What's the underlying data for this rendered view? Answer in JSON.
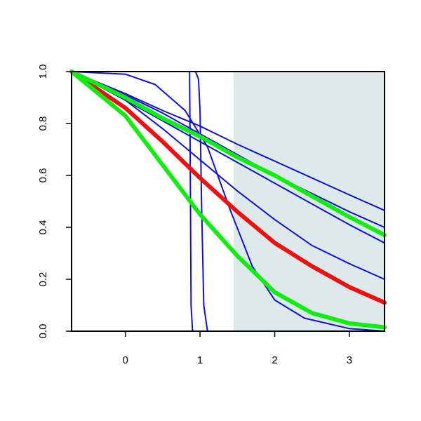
{
  "chart_data": {
    "type": "line",
    "title": "",
    "xlabel": "",
    "ylabel": "",
    "xlim": [
      -0.72,
      3.47
    ],
    "ylim": [
      0,
      1
    ],
    "x_ticks": [
      0,
      1,
      2,
      3
    ],
    "x_tick_labels": [
      "0",
      "1",
      "2",
      "3"
    ],
    "y_ticks": [
      0,
      0.2,
      0.4,
      0.6,
      0.8,
      1.0
    ],
    "y_tick_labels": [
      "0.0",
      "0.2",
      "0.4",
      "0.6",
      "0.8",
      "1.0"
    ],
    "shaded_region": {
      "x_from": 1.45,
      "x_to": 3.47,
      "color": "#dde9ea"
    },
    "grid": false,
    "legend": "none",
    "colors": {
      "blue": "#1010d8",
      "red": "#ee1010",
      "green": "#10ee10"
    },
    "series": [
      {
        "color": "blue",
        "width": "thin",
        "x": [
          -0.72,
          0.86,
          0.87,
          0.88,
          0.9,
          3.47
        ],
        "y": [
          1.0,
          1.0,
          0.6,
          0.1,
          0.0,
          0.0
        ]
      },
      {
        "color": "blue",
        "width": "thin",
        "x": [
          -0.72,
          0.94,
          0.98,
          1.0,
          1.02,
          1.05,
          1.1,
          3.47
        ],
        "y": [
          1.0,
          1.0,
          0.97,
          0.85,
          0.5,
          0.1,
          0.0,
          0.0
        ]
      },
      {
        "color": "blue",
        "width": "thin",
        "x": [
          -0.72,
          0.0,
          0.4,
          0.8,
          1.1,
          1.4,
          1.7,
          2.0,
          2.4,
          3.0,
          3.47
        ],
        "y": [
          1.0,
          0.99,
          0.95,
          0.85,
          0.71,
          0.47,
          0.25,
          0.12,
          0.05,
          0.01,
          0.0
        ]
      },
      {
        "color": "blue",
        "width": "thin",
        "x": [
          -0.72,
          0.0,
          0.5,
          1.0,
          1.5,
          2.0,
          2.5,
          3.0,
          3.47
        ],
        "y": [
          1.0,
          0.89,
          0.78,
          0.66,
          0.54,
          0.43,
          0.33,
          0.26,
          0.2
        ]
      },
      {
        "color": "blue",
        "width": "thin",
        "x": [
          -0.72,
          0.0,
          0.5,
          1.0,
          1.5,
          2.0,
          2.5,
          3.0,
          3.47
        ],
        "y": [
          1.0,
          0.89,
          0.81,
          0.73,
          0.65,
          0.57,
          0.49,
          0.41,
          0.34
        ]
      },
      {
        "color": "blue",
        "width": "thin",
        "x": [
          -0.72,
          0.0,
          0.5,
          1.0,
          1.5,
          2.0,
          2.5,
          3.0,
          3.47
        ],
        "y": [
          1.0,
          0.91,
          0.84,
          0.76,
          0.68,
          0.6,
          0.53,
          0.46,
          0.4
        ]
      },
      {
        "color": "blue",
        "width": "thin",
        "x": [
          -0.72,
          0.0,
          0.5,
          1.0,
          1.5,
          2.0,
          2.5,
          3.0,
          3.47
        ],
        "y": [
          1.0,
          0.915,
          0.85,
          0.79,
          0.72,
          0.655,
          0.59,
          0.525,
          0.465
        ]
      },
      {
        "color": "red",
        "width": "thick",
        "x": [
          -0.72,
          0.0,
          0.5,
          1.0,
          1.5,
          2.0,
          2.5,
          3.0,
          3.47
        ],
        "y": [
          1.0,
          0.86,
          0.73,
          0.59,
          0.46,
          0.34,
          0.25,
          0.17,
          0.11
        ]
      },
      {
        "color": "green",
        "width": "thick",
        "x": [
          -0.72,
          0.0,
          0.5,
          1.0,
          1.5,
          2.0,
          2.5,
          3.0,
          3.47
        ],
        "y": [
          1.0,
          0.83,
          0.64,
          0.45,
          0.29,
          0.15,
          0.07,
          0.03,
          0.015
        ]
      },
      {
        "color": "green",
        "width": "thick",
        "x": [
          -0.72,
          0.0,
          0.5,
          1.0,
          1.5,
          2.0,
          2.5,
          3.0,
          3.47
        ],
        "y": [
          1.0,
          0.9,
          0.82,
          0.75,
          0.67,
          0.6,
          0.52,
          0.44,
          0.37
        ]
      }
    ]
  }
}
